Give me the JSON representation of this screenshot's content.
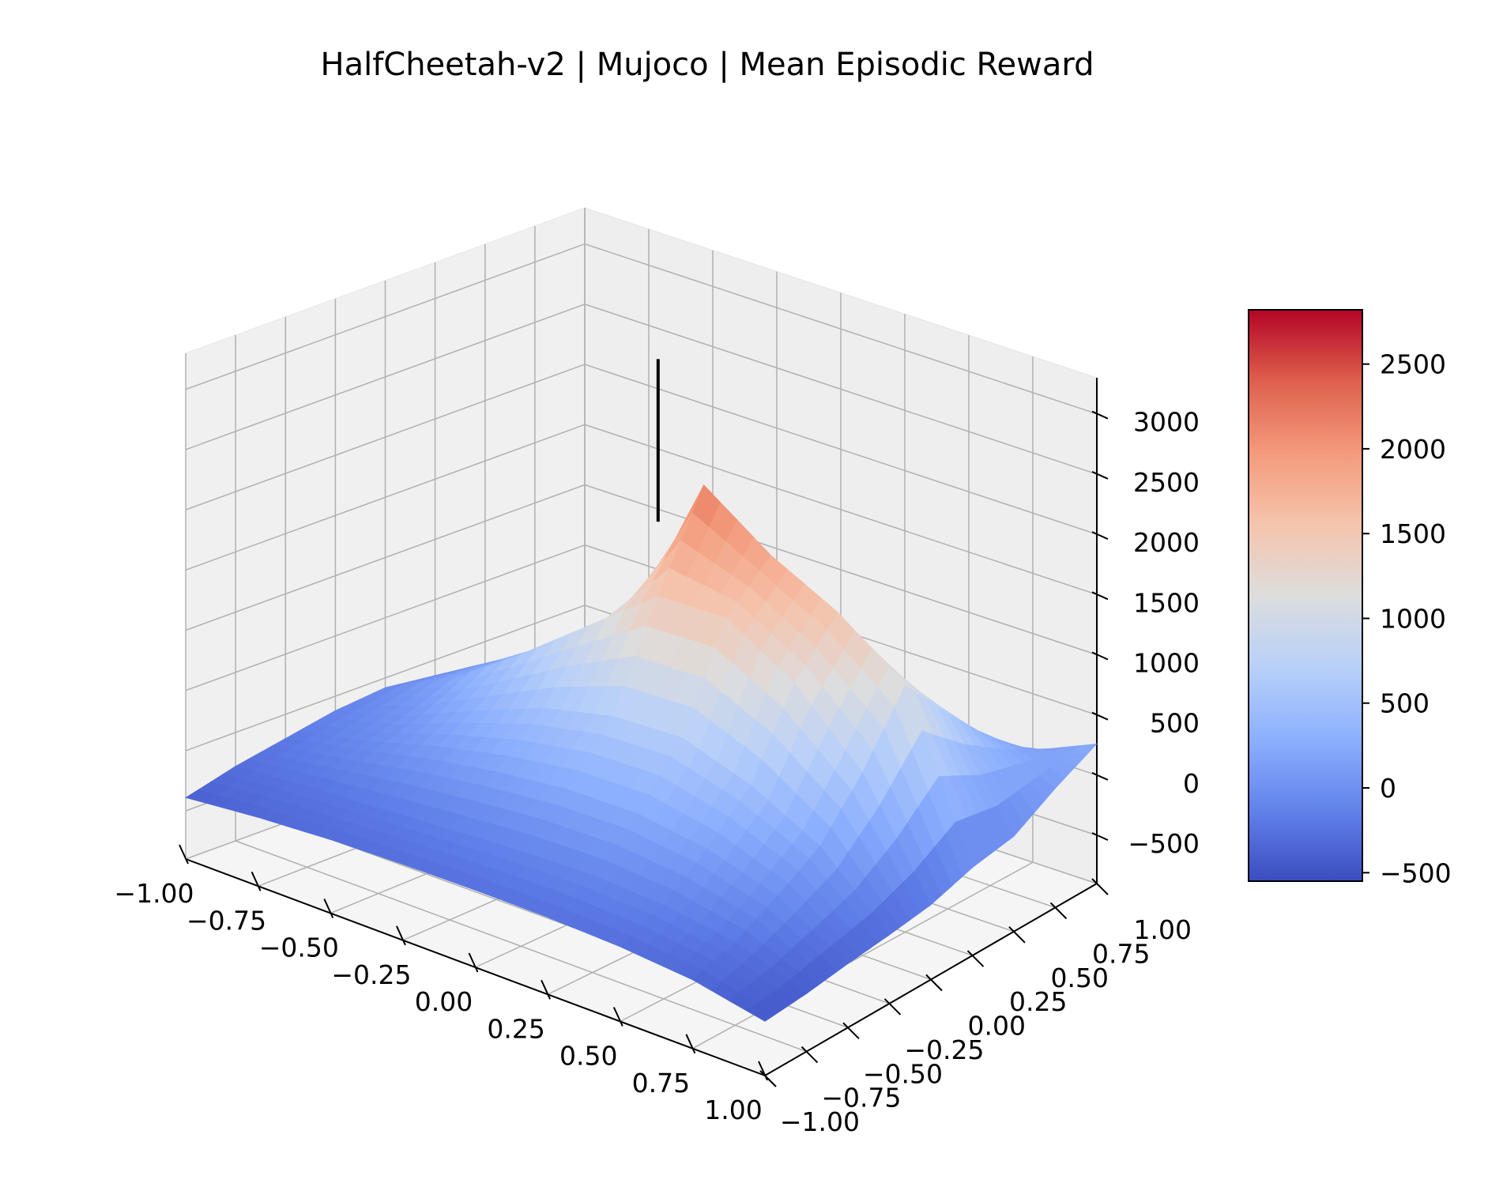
{
  "chart_data": {
    "type": "surface",
    "title": "HalfCheetah-v2 | Mujoco | Mean Episodic Reward",
    "xlabel": "",
    "ylabel": "",
    "zlabel": "",
    "xlim": [
      -1.0,
      1.0
    ],
    "ylim": [
      -1.0,
      1.0
    ],
    "zlim": [
      -900,
      3300
    ],
    "x_ticks": [
      "−1.00",
      "−0.75",
      "−0.50",
      "−0.25",
      "0.00",
      "0.25",
      "0.50",
      "0.75",
      "1.00"
    ],
    "x_tick_values": [
      -1.0,
      -0.75,
      -0.5,
      -0.25,
      0.0,
      0.25,
      0.5,
      0.75,
      1.0
    ],
    "y_ticks": [
      "−1.00",
      "−0.75",
      "−0.50",
      "−0.25",
      "0.00",
      "0.25",
      "0.50",
      "0.75",
      "1.00"
    ],
    "y_tick_values": [
      -1.0,
      -0.75,
      -0.5,
      -0.25,
      0.0,
      0.25,
      0.5,
      0.75,
      1.0
    ],
    "z_ticks": [
      "−500",
      "0",
      "500",
      "1000",
      "1500",
      "2000",
      "2500",
      "3000"
    ],
    "z_tick_values": [
      -500,
      0,
      500,
      1000,
      1500,
      2000,
      2500,
      3000
    ],
    "colormap": "coolwarm",
    "colorbar": {
      "range": [
        -550,
        2820
      ],
      "ticks": [
        "−500",
        "0",
        "500",
        "1000",
        "1500",
        "2000",
        "2500"
      ],
      "tick_values": [
        -500,
        0,
        500,
        1000,
        1500,
        2000,
        2500
      ]
    },
    "marker": {
      "type": "vertical line",
      "x": 0.0,
      "y": 0.0,
      "z_range": [
        2100,
        3450
      ],
      "color": "#000000"
    },
    "surface": {
      "x": [
        -1.0,
        -0.75,
        -0.5,
        -0.25,
        0.0,
        0.25,
        0.5,
        0.75,
        1.0
      ],
      "y": [
        -1.0,
        -0.75,
        -0.5,
        -0.25,
        0.0,
        0.25,
        0.5,
        0.75,
        1.0
      ],
      "z": [
        [
          -390,
          -330,
          -290,
          -270,
          -260,
          -260,
          -280,
          -330,
          -450
        ],
        [
          -280,
          -230,
          -190,
          -150,
          -110,
          -90,
          -120,
          -210,
          -420
        ],
        [
          -200,
          -80,
          60,
          160,
          230,
          240,
          160,
          -20,
          -370
        ],
        [
          -120,
          40,
          290,
          520,
          660,
          690,
          500,
          200,
          -330
        ],
        [
          -80,
          200,
          600,
          1040,
          1480,
          1500,
          1160,
          620,
          -280
        ],
        [
          -130,
          200,
          560,
          980,
          2230,
          1840,
          1560,
          1150,
          -170
        ],
        [
          -280,
          -80,
          220,
          600,
          1050,
          1080,
          960,
          720,
          -110
        ],
        [
          -400,
          -260,
          -60,
          160,
          400,
          470,
          430,
          330,
          90
        ],
        [
          -580,
          -470,
          -350,
          -200,
          -110,
          -90,
          -60,
          30,
          260
        ]
      ]
    },
    "colors": {
      "colorbar_border": "#000000",
      "pane": "#f2f2f2",
      "grid": "#b0b0b0"
    }
  }
}
